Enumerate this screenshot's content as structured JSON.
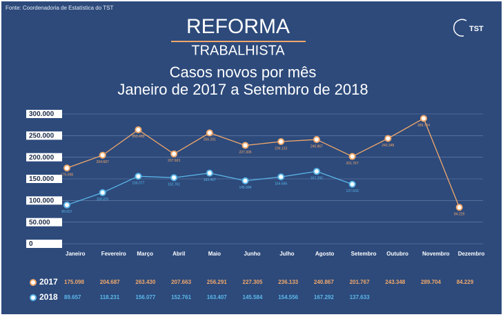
{
  "source": "Fonte: Coordenadoria de Estatística do TST",
  "header": {
    "title": "REFORMA",
    "subtitle": "TRABALHISTA",
    "logo": "TST"
  },
  "chart_data": {
    "type": "line",
    "title": "Casos novos por mês",
    "subtitle": "Janeiro de 2017 a Setembro de 2018",
    "categories": [
      "Janeiro",
      "Fevereiro",
      "Março",
      "Abril",
      "Maio",
      "Junho",
      "Julho",
      "Agosto",
      "Setembro",
      "Outubro",
      "Novembro",
      "Dezembro"
    ],
    "series": [
      {
        "name": "2017",
        "color": "#f2a86a",
        "values": [
          175098,
          204687,
          263430,
          207663,
          256291,
          227305,
          236133,
          240867,
          201767,
          243348,
          289704,
          84229
        ],
        "value_labels": [
          "175.098",
          "204.687",
          "263.430",
          "207.663",
          "256.291",
          "227.305",
          "236.133",
          "240.867",
          "201.767",
          "243.348",
          "289.704",
          "84.229"
        ]
      },
      {
        "name": "2018",
        "color": "#5cb8ea",
        "values": [
          89657,
          118231,
          156077,
          152761,
          163407,
          145584,
          154556,
          167292,
          137633,
          null,
          null,
          null
        ],
        "value_labels": [
          "89.657",
          "118.231",
          "156.077",
          "152.761",
          "163.407",
          "145.584",
          "154.556",
          "167.292",
          "137.633",
          null,
          null,
          null
        ]
      }
    ],
    "ylim": [
      0,
      300000
    ],
    "yticks": [
      0,
      {
        "value": 50000,
        "label": "50.000"
      },
      {
        "value": 100000,
        "label": "100.000"
      },
      {
        "value": 150000,
        "label": "150.000"
      },
      {
        "value": 200000,
        "label": "200.000"
      },
      {
        "value": 250000,
        "label": "250.000"
      },
      {
        "value": 300000,
        "label": "300.000"
      }
    ],
    "grid": true
  }
}
